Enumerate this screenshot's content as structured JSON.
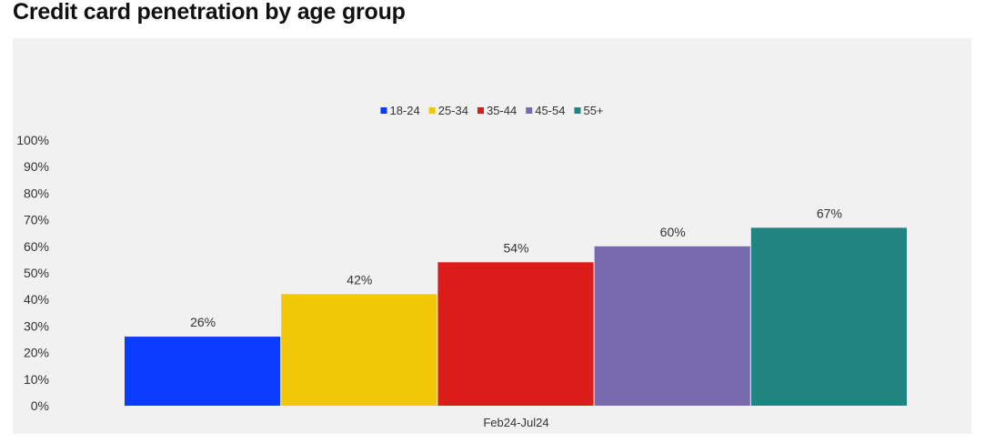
{
  "chart_data": {
    "type": "bar",
    "title": "Credit card penetration by age group",
    "categories": [
      "Feb24-Jul24"
    ],
    "series": [
      {
        "name": "18-24",
        "values": [
          26
        ],
        "label": "26%",
        "color": "#0a3cff"
      },
      {
        "name": "25-34",
        "values": [
          42
        ],
        "label": "42%",
        "color": "#f0c808"
      },
      {
        "name": "35-44",
        "values": [
          54
        ],
        "label": "54%",
        "color": "#dc1b1b"
      },
      {
        "name": "45-54",
        "values": [
          60
        ],
        "label": "60%",
        "color": "#786aad"
      },
      {
        "name": "55+",
        "values": [
          67
        ],
        "label": "67%",
        "color": "#208480"
      }
    ],
    "yticks": [
      "0%",
      "10%",
      "20%",
      "30%",
      "40%",
      "50%",
      "60%",
      "70%",
      "80%",
      "90%",
      "100%"
    ],
    "ylim": [
      0,
      100
    ],
    "xlabel": "",
    "ylabel": "",
    "grid": false,
    "legend_position": "top-center"
  }
}
